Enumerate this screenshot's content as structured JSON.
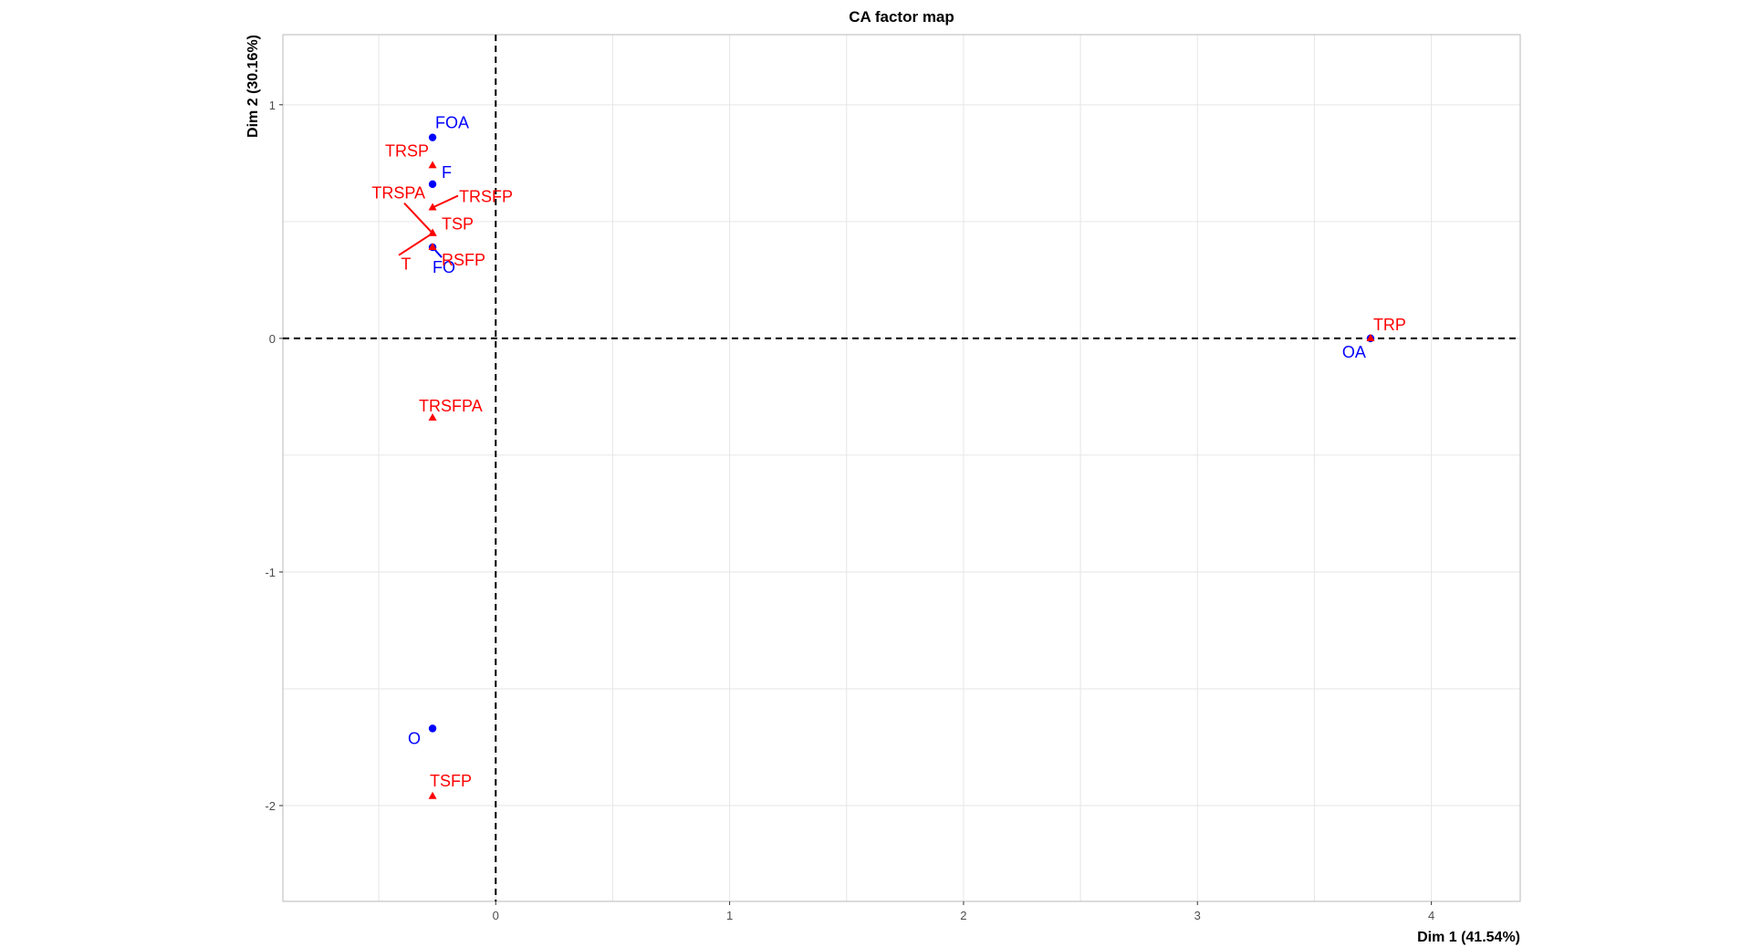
{
  "chart_data": {
    "type": "scatter",
    "title": "CA factor map",
    "xlabel": "Dim 1 (41.54%)",
    "ylabel": "Dim 2 (30.16%)",
    "xlim": [
      -0.91,
      4.38
    ],
    "ylim": [
      -2.41,
      1.3
    ],
    "x_ticks": [
      0,
      1,
      2,
      3,
      4
    ],
    "y_ticks": [
      1,
      0,
      -1,
      -2
    ],
    "grid": true,
    "reference_lines": {
      "x": 0,
      "y": 0,
      "style": "dashed"
    },
    "series": [
      {
        "role": "columns",
        "color": "#0000ff",
        "marker": "circle",
        "points": [
          {
            "label": "FOA",
            "x": -0.27,
            "y": 0.86
          },
          {
            "label": "F",
            "x": -0.27,
            "y": 0.66
          },
          {
            "label": "FO",
            "x": -0.27,
            "y": 0.39
          },
          {
            "label": "OA",
            "x": 3.74,
            "y": 0.0
          },
          {
            "label": "O",
            "x": -0.27,
            "y": -1.67
          }
        ]
      },
      {
        "role": "rows",
        "color": "#ff0000",
        "marker": "triangle",
        "points": [
          {
            "label": "TRSP",
            "x": -0.27,
            "y": 0.74
          },
          {
            "label": "TRSPA",
            "x": -0.27,
            "y": 0.45
          },
          {
            "label": "TRSFP",
            "x": -0.27,
            "y": 0.56
          },
          {
            "label": "TSP",
            "x": -0.27,
            "y": 0.45
          },
          {
            "label": "RSFP",
            "x": -0.27,
            "y": 0.39
          },
          {
            "label": "T",
            "x": -0.27,
            "y": 0.45
          },
          {
            "label": "TRP",
            "x": 3.74,
            "y": 0.0
          },
          {
            "label": "TRSFPA",
            "x": -0.27,
            "y": -0.34
          },
          {
            "label": "TSFP",
            "x": -0.27,
            "y": -1.96
          }
        ]
      }
    ]
  }
}
